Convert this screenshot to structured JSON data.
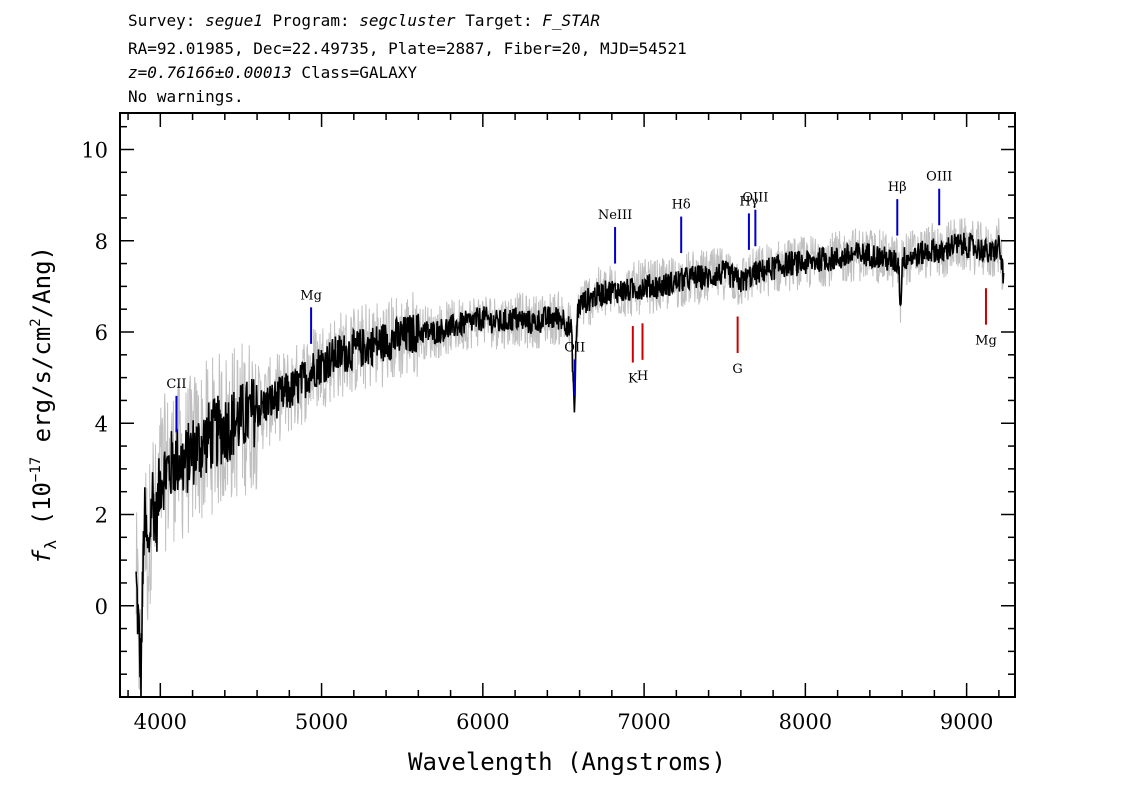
{
  "header": {
    "line1": {
      "survey_label": "Survey:",
      "survey": "segue1",
      "program_label": "Program:",
      "program": "segcluster",
      "target_label": "Target:",
      "target": "F_STAR"
    },
    "line2": "RA=92.01985, Dec=22.49735, Plate=2887, Fiber=20, MJD=54521",
    "line3": {
      "z": "z=0.76166±0.00013",
      "class": "Class=GALAXY"
    },
    "line4": "No warnings."
  },
  "chart_data": {
    "type": "line",
    "xlabel": "Wavelength (Angstroms)",
    "ylabel": {
      "f": "f",
      "sub": "λ",
      "open": "(10",
      "sup": "−17",
      "rest": "erg/s/cm",
      "sup2": "2",
      "tail": "/Ang)"
    },
    "xlim": [
      3750,
      9300
    ],
    "ylim": [
      -2,
      10.8
    ],
    "x_ticks": [
      4000,
      5000,
      6000,
      7000,
      8000,
      9000
    ],
    "y_ticks": [
      0,
      2,
      4,
      6,
      8,
      10
    ],
    "grid": false,
    "colors": {
      "flux": "#000000",
      "error_band": "#c0c0c0",
      "emission": "#0000cc",
      "absorption": "#cc0000"
    },
    "series": [
      {
        "style": "black-smoothed",
        "x": [
          3850,
          3880,
          3900,
          3925,
          3950,
          3975,
          4000,
          4050,
          4100,
          4150,
          4200,
          4250,
          4300,
          4350,
          4400,
          4450,
          4500,
          4550,
          4600,
          4650,
          4700,
          4750,
          4800,
          4850,
          4900,
          4950,
          5000,
          5100,
          5200,
          5300,
          5400,
          5500,
          5600,
          5700,
          5800,
          5900,
          6000,
          6100,
          6200,
          6300,
          6400,
          6500,
          6550,
          6570,
          6575,
          6590,
          6600,
          6700,
          6800,
          6900,
          7000,
          7100,
          7200,
          7300,
          7400,
          7500,
          7600,
          7700,
          7800,
          7900,
          8000,
          8100,
          8200,
          8300,
          8400,
          8500,
          8580,
          8590,
          8600,
          8700,
          8800,
          8850,
          8900,
          9000,
          9100,
          9150,
          9200,
          9230
        ],
        "y": [
          0.5,
          -1.5,
          2.0,
          1.0,
          2.5,
          1.8,
          2.8,
          3.0,
          3.2,
          3.1,
          3.4,
          3.5,
          3.7,
          3.8,
          3.9,
          4.0,
          4.1,
          4.2,
          4.3,
          4.4,
          4.5,
          4.6,
          4.7,
          4.8,
          5.0,
          5.2,
          5.3,
          5.5,
          5.6,
          5.7,
          5.8,
          5.9,
          6.0,
          6.0,
          6.1,
          6.2,
          6.3,
          6.2,
          6.3,
          6.2,
          6.3,
          6.3,
          6.0,
          4.0,
          5.6,
          6.5,
          6.6,
          6.8,
          6.9,
          6.9,
          7.0,
          7.0,
          7.1,
          7.2,
          7.2,
          7.3,
          7.1,
          7.3,
          7.4,
          7.5,
          7.5,
          7.6,
          7.6,
          7.7,
          7.7,
          7.6,
          7.5,
          6.4,
          7.6,
          7.7,
          7.8,
          7.7,
          7.9,
          7.9,
          7.8,
          7.7,
          7.9,
          7.2
        ]
      }
    ],
    "lines": [
      {
        "label": "CII",
        "wavelength": 4100,
        "type": "emission"
      },
      {
        "label": "Mg",
        "wavelength": 4935,
        "type": "emission"
      },
      {
        "label": "OII",
        "wavelength": 6570,
        "type": "emission"
      },
      {
        "label": "NeIII",
        "wavelength": 6820,
        "type": "emission"
      },
      {
        "label": "Hδ",
        "wavelength": 7230,
        "type": "emission"
      },
      {
        "label": "Hγ",
        "wavelength": 7650,
        "type": "emission"
      },
      {
        "label": "OIII",
        "wavelength": 7690,
        "type": "emission"
      },
      {
        "label": "Hβ",
        "wavelength": 8570,
        "type": "emission"
      },
      {
        "label": "OIII",
        "wavelength": 8830,
        "type": "emission"
      },
      {
        "label": "K",
        "wavelength": 6930,
        "type": "absorption"
      },
      {
        "label": "H",
        "wavelength": 6990,
        "type": "absorption"
      },
      {
        "label": "G",
        "wavelength": 7580,
        "type": "absorption"
      },
      {
        "label": "Mg",
        "wavelength": 9120,
        "type": "absorption"
      }
    ]
  }
}
